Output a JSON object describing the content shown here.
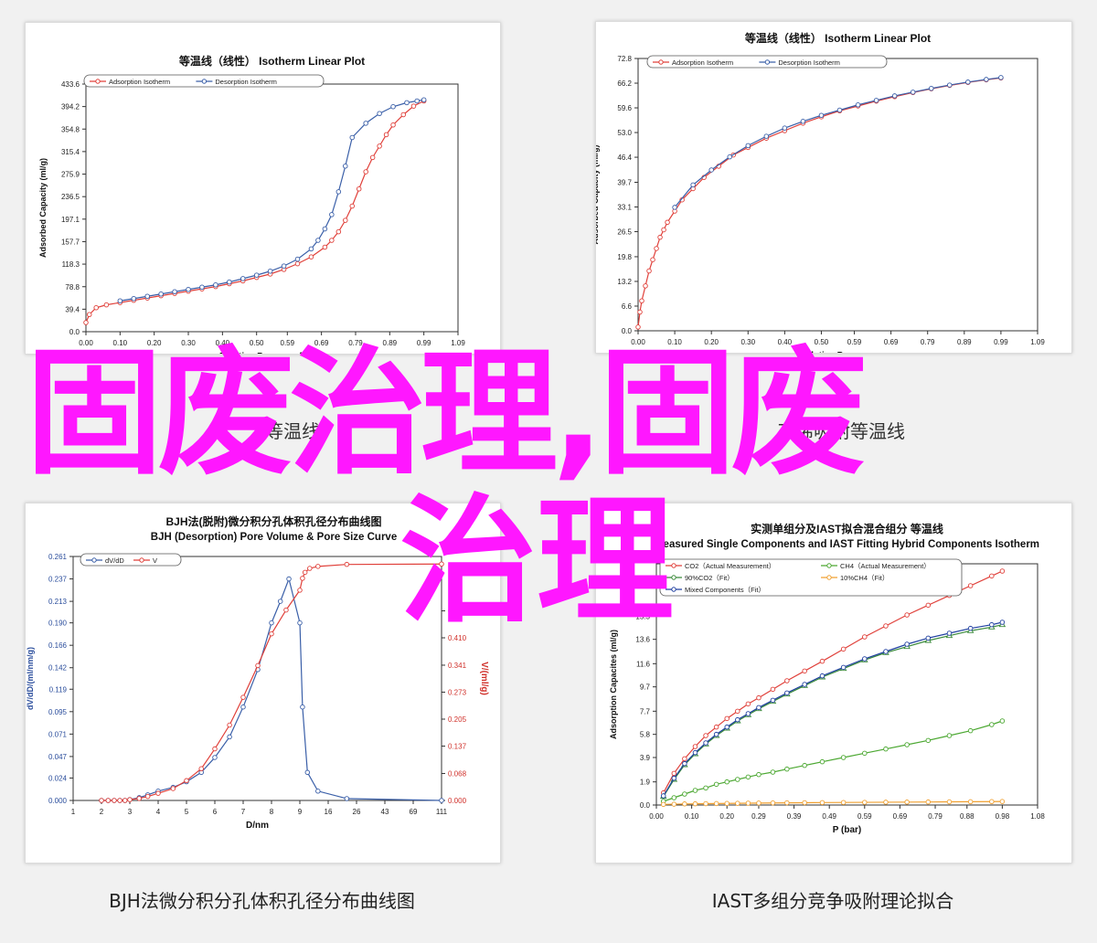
{
  "captions": {
    "bottom_left": "BJH法微分积分孔体积孔径分布曲线图",
    "bottom_right": "IAST多组分竞争吸附理论拟合",
    "top_left_partial": "等温线",
    "top_right_partial": "乙烯吸附等温线"
  },
  "watermark": {
    "line1": "固废治理,固废",
    "line2": "治理",
    "color": "#ff17ff"
  },
  "chart_data": [
    {
      "type": "line",
      "title": "等温线（线性） Isotherm Linear Plot",
      "xlabel": "Relative Pressure (P/P0)",
      "ylabel": "Adsorbed Capacity (ml/g)",
      "xticks": [
        "0.00",
        "0.10",
        "0.20",
        "0.30",
        "0.40",
        "0.50",
        "0.59",
        "0.69",
        "0.79",
        "0.89",
        "0.99",
        "1.09"
      ],
      "yticks": [
        "0.0",
        "39.4",
        "78.8",
        "118.3",
        "157.7",
        "197.1",
        "236.5",
        "275.9",
        "315.4",
        "354.8",
        "394.2",
        "433.6"
      ],
      "xlim": [
        0,
        1.09
      ],
      "ylim": [
        0,
        433.6
      ],
      "legend_position": "top-left",
      "series": [
        {
          "name": "Adsorption Isotherm",
          "color": "#e0403a",
          "x": [
            0.0,
            0.01,
            0.03,
            0.06,
            0.1,
            0.14,
            0.18,
            0.22,
            0.26,
            0.3,
            0.34,
            0.38,
            0.42,
            0.46,
            0.5,
            0.54,
            0.58,
            0.62,
            0.66,
            0.7,
            0.72,
            0.74,
            0.76,
            0.78,
            0.8,
            0.82,
            0.84,
            0.86,
            0.88,
            0.9,
            0.93,
            0.96,
            0.99
          ],
          "y": [
            16,
            30,
            42,
            47,
            51,
            55,
            59,
            63,
            67,
            71,
            75,
            79,
            84,
            89,
            95,
            101,
            109,
            119,
            131,
            148,
            160,
            175,
            195,
            220,
            250,
            280,
            305,
            325,
            345,
            362,
            380,
            395,
            404
          ]
        },
        {
          "name": "Desorption Isotherm",
          "color": "#3a5fa8",
          "x": [
            0.1,
            0.14,
            0.18,
            0.22,
            0.26,
            0.3,
            0.34,
            0.38,
            0.42,
            0.46,
            0.5,
            0.54,
            0.58,
            0.62,
            0.66,
            0.68,
            0.7,
            0.72,
            0.74,
            0.76,
            0.78,
            0.82,
            0.86,
            0.9,
            0.94,
            0.97,
            0.99
          ],
          "y": [
            54,
            58,
            62,
            66,
            70,
            74,
            78,
            82,
            87,
            93,
            99,
            106,
            115,
            127,
            145,
            160,
            180,
            205,
            245,
            290,
            340,
            365,
            382,
            394,
            401,
            404,
            406
          ]
        }
      ]
    },
    {
      "type": "line",
      "title": "等温线（线性） Isotherm Linear Plot",
      "xlabel": "Relative Pressure",
      "ylabel": "Adsorbed Capacity (ml/g)",
      "xticks": [
        "0.00",
        "0.10",
        "0.20",
        "0.30",
        "0.40",
        "0.50",
        "0.59",
        "0.69",
        "0.79",
        "0.89",
        "0.99",
        "1.09"
      ],
      "yticks": [
        "0.0",
        "6.6",
        "13.2",
        "19.8",
        "26.5",
        "33.1",
        "39.7",
        "46.4",
        "53.0",
        "59.6",
        "66.2",
        "72.8"
      ],
      "xlim": [
        0,
        1.09
      ],
      "ylim": [
        0,
        72.8
      ],
      "legend_position": "top-left",
      "series": [
        {
          "name": "Adsorption Isotherm",
          "color": "#e0403a",
          "x": [
            0.0,
            0.005,
            0.01,
            0.02,
            0.03,
            0.04,
            0.05,
            0.06,
            0.07,
            0.08,
            0.1,
            0.12,
            0.15,
            0.18,
            0.22,
            0.26,
            0.3,
            0.35,
            0.4,
            0.45,
            0.5,
            0.55,
            0.6,
            0.65,
            0.7,
            0.75,
            0.8,
            0.85,
            0.9,
            0.95,
            0.99
          ],
          "y": [
            1,
            5,
            8,
            12,
            16,
            19,
            22,
            25,
            27,
            29,
            32,
            35,
            38,
            41,
            44,
            47,
            49,
            51.5,
            53.5,
            55.5,
            57.2,
            58.8,
            60.1,
            61.4,
            62.6,
            63.7,
            64.7,
            65.6,
            66.4,
            67.1,
            67.6
          ]
        },
        {
          "name": "Desorption Isotherm",
          "color": "#3a5fa8",
          "x": [
            0.1,
            0.15,
            0.2,
            0.25,
            0.3,
            0.35,
            0.4,
            0.45,
            0.5,
            0.55,
            0.6,
            0.65,
            0.7,
            0.75,
            0.8,
            0.85,
            0.9,
            0.95,
            0.99
          ],
          "y": [
            33,
            39,
            43,
            46.5,
            49.5,
            52,
            54.2,
            56,
            57.6,
            59,
            60.4,
            61.6,
            62.8,
            63.8,
            64.8,
            65.7,
            66.5,
            67.2,
            67.7
          ]
        }
      ]
    },
    {
      "type": "line",
      "title": "BJH法(脱附)微分积分孔体积孔径分布曲线图",
      "subtitle": "BJH (Desorption) Pore Volume & Pore Size Curve",
      "xlabel": "D/nm",
      "ylabel": "dV/dD/(ml/nm/g)",
      "y2label": "V/(ml/g)",
      "xticks": [
        "1",
        "2",
        "3",
        "4",
        "5",
        "6",
        "7",
        "8",
        "9",
        "16",
        "26",
        "43",
        "69",
        "111"
      ],
      "yticks": [
        "0.000",
        "0.024",
        "0.047",
        "0.071",
        "0.095",
        "0.119",
        "0.142",
        "0.166",
        "0.190",
        "0.213",
        "0.237",
        "0.261"
      ],
      "y2ticks": [
        "0.000",
        "0.068",
        "0.137",
        "0.205",
        "0.273",
        "0.341",
        "0.410",
        "0.478"
      ],
      "ylim": [
        0,
        0.261
      ],
      "y2lim": [
        0,
        0.615
      ],
      "legend_position": "top-left",
      "series": [
        {
          "name": "dV/dD",
          "color": "#3a5fa8",
          "x": [
            2,
            2.2,
            2.4,
            2.6,
            2.8,
            3,
            3.3,
            3.6,
            4,
            4.5,
            5,
            5.5,
            6,
            6.5,
            7,
            7.5,
            8,
            8.3,
            8.6,
            9,
            9.5,
            10.5,
            13,
            22,
            111
          ],
          "y": [
            0,
            0,
            0,
            0,
            0,
            0.001,
            0.003,
            0.006,
            0.01,
            0.014,
            0.02,
            0.03,
            0.046,
            0.068,
            0.1,
            0.14,
            0.19,
            0.213,
            0.237,
            0.19,
            0.1,
            0.03,
            0.01,
            0.002,
            0.0
          ]
        },
        {
          "name": "V",
          "color": "#e0403a",
          "axis": "y2",
          "x": [
            2,
            2.2,
            2.4,
            2.6,
            2.8,
            3,
            3.3,
            3.6,
            4,
            4.5,
            5,
            5.5,
            6,
            6.5,
            7,
            7.5,
            8,
            8.5,
            9,
            9.5,
            10,
            11,
            13,
            22,
            111
          ],
          "y": [
            0,
            0,
            0,
            0,
            0,
            0.002,
            0.005,
            0.01,
            0.018,
            0.03,
            0.05,
            0.08,
            0.13,
            0.19,
            0.26,
            0.34,
            0.42,
            0.48,
            0.53,
            0.56,
            0.575,
            0.585,
            0.59,
            0.595,
            0.596
          ]
        }
      ]
    },
    {
      "type": "line",
      "title": "实测单组分及IAST拟合混合组分 等温线",
      "subtitle": "Measured Single Components and IAST Fitting Hybrid Components Isotherm",
      "xlabel": "P (bar)",
      "ylabel": "Adsorption Capacites (ml/g)",
      "xticks": [
        "0.00",
        "0.10",
        "0.20",
        "0.29",
        "0.39",
        "0.49",
        "0.59",
        "0.69",
        "0.79",
        "0.88",
        "0.98",
        "1.08"
      ],
      "yticks": [
        "0.0",
        "1.9",
        "3.9",
        "5.8",
        "7.7",
        "9.7",
        "11.6",
        "13.6",
        "15.5"
      ],
      "xlim": [
        0,
        1.08
      ],
      "legend_position": "top-left",
      "series": [
        {
          "name": "CO2（Actual Measurement）",
          "color": "#e0403a",
          "x": [
            0.02,
            0.05,
            0.08,
            0.11,
            0.14,
            0.17,
            0.2,
            0.23,
            0.26,
            0.29,
            0.33,
            0.37,
            0.42,
            0.47,
            0.53,
            0.59,
            0.65,
            0.71,
            0.77,
            0.83,
            0.89,
            0.95,
            0.98
          ],
          "y": [
            1.0,
            2.6,
            3.8,
            4.8,
            5.7,
            6.4,
            7.1,
            7.7,
            8.3,
            8.8,
            9.5,
            10.2,
            11.0,
            11.8,
            12.8,
            13.8,
            14.7,
            15.6,
            16.4,
            17.2,
            18.0,
            18.8,
            19.2
          ]
        },
        {
          "name": "CH4（Actual Measurement）",
          "color": "#4ca832",
          "x": [
            0.02,
            0.05,
            0.08,
            0.11,
            0.14,
            0.17,
            0.2,
            0.23,
            0.26,
            0.29,
            0.33,
            0.37,
            0.42,
            0.47,
            0.53,
            0.59,
            0.65,
            0.71,
            0.77,
            0.83,
            0.89,
            0.95,
            0.98
          ],
          "y": [
            0.3,
            0.6,
            0.9,
            1.2,
            1.4,
            1.7,
            1.9,
            2.1,
            2.3,
            2.5,
            2.7,
            2.95,
            3.25,
            3.55,
            3.9,
            4.25,
            4.6,
            4.95,
            5.3,
            5.7,
            6.1,
            6.6,
            6.9
          ]
        },
        {
          "name": "90%CO2（Fit）",
          "color": "#3a8a3a",
          "x": [
            0.02,
            0.05,
            0.08,
            0.11,
            0.14,
            0.17,
            0.2,
            0.23,
            0.26,
            0.29,
            0.33,
            0.37,
            0.42,
            0.47,
            0.53,
            0.59,
            0.65,
            0.71,
            0.77,
            0.83,
            0.89,
            0.95,
            0.98
          ],
          "y": [
            0.7,
            2.1,
            3.3,
            4.2,
            5.0,
            5.7,
            6.3,
            6.9,
            7.4,
            7.9,
            8.5,
            9.1,
            9.8,
            10.5,
            11.2,
            11.9,
            12.5,
            13.0,
            13.5,
            13.9,
            14.3,
            14.6,
            14.8
          ]
        },
        {
          "name": "10%CH4（Fit）",
          "color": "#f0a030",
          "x": [
            0.02,
            0.05,
            0.08,
            0.11,
            0.14,
            0.17,
            0.2,
            0.23,
            0.26,
            0.29,
            0.33,
            0.37,
            0.42,
            0.47,
            0.53,
            0.59,
            0.65,
            0.71,
            0.77,
            0.83,
            0.89,
            0.95,
            0.98
          ],
          "y": [
            0.05,
            0.07,
            0.09,
            0.1,
            0.11,
            0.12,
            0.13,
            0.14,
            0.15,
            0.16,
            0.17,
            0.18,
            0.19,
            0.2,
            0.21,
            0.22,
            0.23,
            0.24,
            0.25,
            0.26,
            0.27,
            0.28,
            0.29
          ]
        },
        {
          "name": "Mixed Components（Fit）",
          "color": "#2040a0",
          "x": [
            0.02,
            0.05,
            0.08,
            0.11,
            0.14,
            0.17,
            0.2,
            0.23,
            0.26,
            0.29,
            0.33,
            0.37,
            0.42,
            0.47,
            0.53,
            0.59,
            0.65,
            0.71,
            0.77,
            0.83,
            0.89,
            0.95,
            0.98
          ],
          "y": [
            0.75,
            2.2,
            3.4,
            4.3,
            5.1,
            5.8,
            6.4,
            7.0,
            7.5,
            8.0,
            8.6,
            9.2,
            9.9,
            10.6,
            11.3,
            12.0,
            12.6,
            13.2,
            13.7,
            14.1,
            14.5,
            14.8,
            15.0
          ]
        }
      ]
    }
  ]
}
